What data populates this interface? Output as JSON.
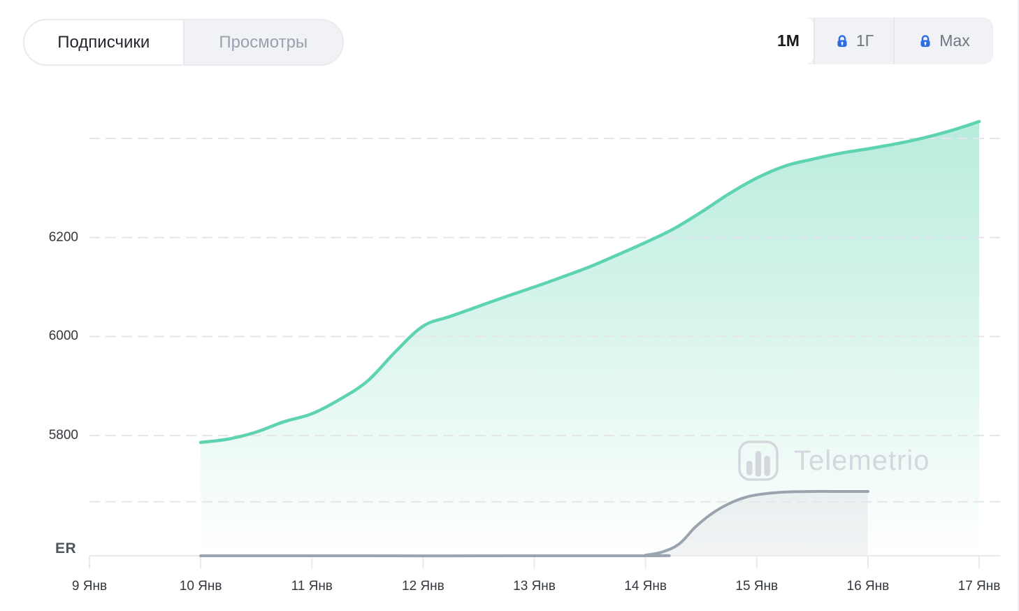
{
  "header": {
    "tabs": [
      {
        "id": "subscribers",
        "label": "Подписчики",
        "active": true
      },
      {
        "id": "views",
        "label": "Просмотры",
        "active": false
      }
    ],
    "ranges": [
      {
        "label": "1M",
        "locked": false,
        "active": true
      },
      {
        "label": "1Г",
        "locked": true,
        "active": false
      },
      {
        "label": "Max",
        "locked": true,
        "active": false
      }
    ]
  },
  "watermark": {
    "brand": "Telemetrio"
  },
  "colors": {
    "subscribers_line": "#5ed3b1",
    "subscribers_fill_top": "rgba(97,212,178,0.45)",
    "subscribers_fill_bottom": "rgba(97,212,178,0)",
    "er_line": "#9aa4af",
    "er_fill": "rgba(151,160,172,0.12)",
    "gridline": "#e4e6eb",
    "axis": "#e8eaee",
    "lock_icon": "#2e6ce4"
  },
  "chart_data": {
    "type": "area",
    "title": "",
    "x_tick_labels": [
      "9 Янв",
      "10 Янв",
      "11 Янв",
      "12 Янв",
      "13 Янв",
      "14 Янв",
      "15 Янв",
      "16 Янв",
      "17 Янв"
    ],
    "x_days": [
      9,
      10,
      11,
      12,
      13,
      14,
      15,
      16,
      17
    ],
    "y_ticks": [
      5800,
      6000,
      6200
    ],
    "y_gridlines": [
      5800,
      6000,
      6200,
      6400
    ],
    "ylim": [
      5660,
      6445
    ],
    "grid": "dashed",
    "legend": "none",
    "er_axis_label": "ER",
    "er_gridline_normalized": 0.84,
    "series": [
      {
        "name": "Подписчики",
        "color": "#5ed3b1",
        "days": [
          10.0,
          10.25,
          10.5,
          10.75,
          11.0,
          11.25,
          11.5,
          11.75,
          12.0,
          12.25,
          12.5,
          12.75,
          13.0,
          13.25,
          13.5,
          13.75,
          14.0,
          14.25,
          14.5,
          14.75,
          15.0,
          15.25,
          15.5,
          15.75,
          16.0,
          16.25,
          16.5,
          16.75,
          17.0
        ],
        "values": [
          5786,
          5793,
          5807,
          5828,
          5844,
          5873,
          5910,
          5969,
          6021,
          6041,
          6061,
          6081,
          6100,
          6120,
          6141,
          6165,
          6190,
          6217,
          6251,
          6288,
          6320,
          6344,
          6358,
          6370,
          6379,
          6389,
          6401,
          6416,
          6434
        ]
      },
      {
        "name": "ER",
        "color": "#9aa4af",
        "note": "no numeric scale shown; values normalized 0-1 of visual band",
        "days": [
          10.0,
          13.9,
          14.0,
          14.15,
          14.3,
          14.45,
          14.6,
          14.75,
          14.9,
          15.05,
          15.25,
          15.5,
          15.75,
          16.0
        ],
        "values_normalized": [
          0,
          0,
          0.01,
          0.06,
          0.18,
          0.45,
          0.66,
          0.81,
          0.91,
          0.96,
          0.99,
          1.0,
          1.0,
          1.0
        ]
      }
    ]
  }
}
